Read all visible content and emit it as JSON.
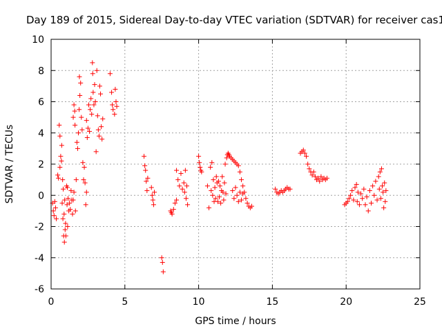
{
  "chart_data": {
    "type": "scatter",
    "title": "Day 189 of 2015, Sidereal Day-to-day VTEC variation (SDTVAR) for receiver cas1",
    "xlabel": "GPS time / hours",
    "ylabel": "SDTVAR / TECUs",
    "xlim": [
      0,
      25
    ],
    "ylim": [
      -6,
      10
    ],
    "xticks": [
      0,
      5,
      10,
      15,
      20,
      25
    ],
    "yticks": [
      -6,
      -4,
      -2,
      0,
      2,
      4,
      6,
      8,
      10
    ],
    "xtick_labels": [
      "0",
      "5",
      "10",
      "15",
      "20",
      "25"
    ],
    "ytick_labels": [
      "-6",
      "-4",
      "-2",
      "0",
      "2",
      "4",
      "6",
      "8",
      "10"
    ],
    "grid": true,
    "marker": "+",
    "color": "#ff0000",
    "series": [
      {
        "name": "SDTVAR",
        "points": [
          [
            0.1,
            -0.5
          ],
          [
            0.15,
            -1.0
          ],
          [
            0.2,
            -1.3
          ],
          [
            0.25,
            -0.4
          ],
          [
            0.3,
            -0.8
          ],
          [
            0.35,
            -1.5
          ],
          [
            0.45,
            1.3
          ],
          [
            0.5,
            1.1
          ],
          [
            0.55,
            4.5
          ],
          [
            0.6,
            3.8
          ],
          [
            0.6,
            1.8
          ],
          [
            0.65,
            2.5
          ],
          [
            0.7,
            2.2
          ],
          [
            0.72,
            3.2
          ],
          [
            0.75,
            -0.5
          ],
          [
            0.78,
            1.0
          ],
          [
            0.8,
            -1.5
          ],
          [
            0.82,
            0.4
          ],
          [
            0.85,
            -2.6
          ],
          [
            0.88,
            -1.2
          ],
          [
            0.9,
            -3.0
          ],
          [
            0.92,
            -0.3
          ],
          [
            0.95,
            -2.2
          ],
          [
            0.98,
            -1.8
          ],
          [
            1.0,
            -2.6
          ],
          [
            1.05,
            0.6
          ],
          [
            1.08,
            -0.6
          ],
          [
            1.1,
            0.5
          ],
          [
            1.12,
            -2.0
          ],
          [
            1.15,
            -0.2
          ],
          [
            1.2,
            -1.0
          ],
          [
            1.25,
            -0.5
          ],
          [
            1.3,
            -0.9
          ],
          [
            1.35,
            0.3
          ],
          [
            1.4,
            -0.3
          ],
          [
            1.45,
            -1.2
          ],
          [
            1.5,
            -0.3
          ],
          [
            1.55,
            0.2
          ],
          [
            1.5,
            5.0
          ],
          [
            1.55,
            5.8
          ],
          [
            1.6,
            5.4
          ],
          [
            1.62,
            4.5
          ],
          [
            1.65,
            -1.0
          ],
          [
            1.7,
            1.0
          ],
          [
            1.75,
            3.4
          ],
          [
            1.8,
            3.0
          ],
          [
            1.85,
            4.0
          ],
          [
            1.9,
            5.5
          ],
          [
            1.92,
            7.6
          ],
          [
            1.95,
            6.4
          ],
          [
            2.0,
            7.2
          ],
          [
            2.05,
            5.0
          ],
          [
            2.1,
            4.2
          ],
          [
            2.15,
            2.1
          ],
          [
            2.2,
            1.0
          ],
          [
            2.25,
            1.8
          ],
          [
            2.3,
            0.8
          ],
          [
            2.35,
            -0.6
          ],
          [
            2.4,
            0.2
          ],
          [
            2.4,
            4.8
          ],
          [
            2.45,
            3.7
          ],
          [
            2.5,
            4.3
          ],
          [
            2.55,
            5.8
          ],
          [
            2.6,
            4.1
          ],
          [
            2.65,
            5.5
          ],
          [
            2.7,
            6.2
          ],
          [
            2.75,
            5.2
          ],
          [
            2.8,
            8.5
          ],
          [
            2.82,
            7.8
          ],
          [
            2.85,
            6.6
          ],
          [
            2.9,
            5.8
          ],
          [
            2.95,
            7.1
          ],
          [
            3.0,
            6.0
          ],
          [
            3.05,
            2.8
          ],
          [
            3.1,
            8.0
          ],
          [
            3.15,
            5.1
          ],
          [
            3.2,
            4.2
          ],
          [
            3.25,
            3.8
          ],
          [
            3.3,
            7.0
          ],
          [
            3.35,
            6.5
          ],
          [
            3.4,
            4.4
          ],
          [
            3.45,
            3.6
          ],
          [
            3.5,
            4.9
          ],
          [
            4.0,
            7.8
          ],
          [
            4.1,
            6.6
          ],
          [
            4.15,
            5.8
          ],
          [
            4.2,
            5.5
          ],
          [
            4.3,
            5.2
          ],
          [
            4.35,
            6.8
          ],
          [
            4.4,
            6.0
          ],
          [
            4.45,
            5.7
          ],
          [
            6.3,
            2.5
          ],
          [
            6.35,
            1.9
          ],
          [
            6.4,
            1.6
          ],
          [
            6.45,
            0.9
          ],
          [
            6.5,
            0.3
          ],
          [
            6.55,
            1.1
          ],
          [
            6.8,
            0.5
          ],
          [
            6.85,
            0.0
          ],
          [
            6.9,
            -0.3
          ],
          [
            6.95,
            -0.6
          ],
          [
            7.0,
            0.2
          ],
          [
            7.5,
            -4.0
          ],
          [
            7.55,
            -4.3
          ],
          [
            7.6,
            -4.9
          ],
          [
            8.1,
            -1.0
          ],
          [
            8.15,
            -1.1
          ],
          [
            8.2,
            -1.2
          ],
          [
            8.3,
            -0.9
          ],
          [
            8.4,
            -0.5
          ],
          [
            8.5,
            -0.3
          ],
          [
            8.5,
            1.6
          ],
          [
            8.6,
            1.0
          ],
          [
            8.7,
            0.6
          ],
          [
            8.8,
            1.4
          ],
          [
            8.9,
            0.4
          ],
          [
            9.0,
            0.8
          ],
          [
            9.05,
            0.2
          ],
          [
            9.1,
            1.6
          ],
          [
            9.15,
            -0.2
          ],
          [
            9.2,
            0.6
          ],
          [
            9.25,
            -0.6
          ],
          [
            10.0,
            2.5
          ],
          [
            10.05,
            2.1
          ],
          [
            10.1,
            1.8
          ],
          [
            10.15,
            1.6
          ],
          [
            10.2,
            1.5
          ],
          [
            10.6,
            0.6
          ],
          [
            10.7,
            -0.8
          ],
          [
            10.8,
            1.8
          ],
          [
            10.85,
            0.3
          ],
          [
            10.9,
            2.1
          ],
          [
            10.95,
            0.0
          ],
          [
            11.0,
            1.0
          ],
          [
            11.05,
            -0.4
          ],
          [
            11.1,
            0.5
          ],
          [
            11.15,
            -0.2
          ],
          [
            11.2,
            1.2
          ],
          [
            11.25,
            0.8
          ],
          [
            11.3,
            -0.4
          ],
          [
            11.35,
            0.9
          ],
          [
            11.4,
            -0.1
          ],
          [
            11.45,
            0.6
          ],
          [
            11.5,
            -0.5
          ],
          [
            11.55,
            0.3
          ],
          [
            11.6,
            1.2
          ],
          [
            11.65,
            0.2
          ],
          [
            11.7,
            -0.3
          ],
          [
            11.75,
            0.8
          ],
          [
            11.8,
            2.0
          ],
          [
            11.85,
            0.1
          ],
          [
            11.9,
            2.4
          ],
          [
            11.95,
            2.6
          ],
          [
            12.0,
            2.7
          ],
          [
            12.05,
            2.6
          ],
          [
            12.1,
            2.5
          ],
          [
            12.2,
            2.4
          ],
          [
            12.3,
            2.3
          ],
          [
            12.4,
            2.2
          ],
          [
            12.5,
            2.1
          ],
          [
            12.6,
            2.0
          ],
          [
            12.7,
            1.9
          ],
          [
            12.8,
            1.5
          ],
          [
            12.9,
            1.0
          ],
          [
            13.0,
            0.6
          ],
          [
            13.1,
            0.2
          ],
          [
            13.2,
            -0.2
          ],
          [
            13.3,
            -0.5
          ],
          [
            13.4,
            -0.7
          ],
          [
            13.5,
            -0.8
          ],
          [
            13.6,
            -0.7
          ],
          [
            12.3,
            0.3
          ],
          [
            12.4,
            -0.2
          ],
          [
            12.5,
            0.5
          ],
          [
            12.6,
            0.0
          ],
          [
            12.7,
            -0.4
          ],
          [
            12.8,
            0.2
          ],
          [
            12.9,
            -0.3
          ],
          [
            13.0,
            0.1
          ],
          [
            15.2,
            0.4
          ],
          [
            15.3,
            0.2
          ],
          [
            15.4,
            0.1
          ],
          [
            15.5,
            0.2
          ],
          [
            15.6,
            0.3
          ],
          [
            15.7,
            0.2
          ],
          [
            15.8,
            0.3
          ],
          [
            15.9,
            0.4
          ],
          [
            16.0,
            0.5
          ],
          [
            16.1,
            0.4
          ],
          [
            16.2,
            0.4
          ],
          [
            16.9,
            2.7
          ],
          [
            17.0,
            2.8
          ],
          [
            17.1,
            2.9
          ],
          [
            17.2,
            2.7
          ],
          [
            17.3,
            2.5
          ],
          [
            17.4,
            2.0
          ],
          [
            17.5,
            1.7
          ],
          [
            17.6,
            1.5
          ],
          [
            17.7,
            1.3
          ],
          [
            17.8,
            1.5
          ],
          [
            17.9,
            1.2
          ],
          [
            18.0,
            1.0
          ],
          [
            18.1,
            1.1
          ],
          [
            18.2,
            0.9
          ],
          [
            18.3,
            1.2
          ],
          [
            18.4,
            1.0
          ],
          [
            18.5,
            1.1
          ],
          [
            18.6,
            1.0
          ],
          [
            18.7,
            1.1
          ],
          [
            19.9,
            -0.6
          ],
          [
            20.0,
            -0.5
          ],
          [
            20.1,
            -0.4
          ],
          [
            20.2,
            -0.2
          ],
          [
            20.3,
            0.0
          ],
          [
            20.4,
            0.3
          ],
          [
            20.5,
            -0.3
          ],
          [
            20.6,
            0.5
          ],
          [
            20.7,
            0.7
          ],
          [
            20.75,
            -0.4
          ],
          [
            20.8,
            0.2
          ],
          [
            20.9,
            -0.6
          ],
          [
            21.0,
            0.1
          ],
          [
            21.1,
            -0.2
          ],
          [
            21.2,
            0.4
          ],
          [
            21.3,
            -0.6
          ],
          [
            21.4,
            -0.1
          ],
          [
            21.5,
            -1.0
          ],
          [
            21.6,
            0.3
          ],
          [
            21.7,
            -0.5
          ],
          [
            21.8,
            0.6
          ],
          [
            21.9,
            0.0
          ],
          [
            22.0,
            0.9
          ],
          [
            22.1,
            -0.3
          ],
          [
            22.2,
            1.2
          ],
          [
            22.25,
            0.4
          ],
          [
            22.3,
            1.5
          ],
          [
            22.35,
            -0.2
          ],
          [
            22.4,
            1.7
          ],
          [
            22.45,
            0.6
          ],
          [
            22.5,
            0.2
          ],
          [
            22.55,
            -0.8
          ],
          [
            22.6,
            0.8
          ],
          [
            22.65,
            -0.4
          ],
          [
            22.7,
            0.3
          ]
        ]
      }
    ]
  }
}
